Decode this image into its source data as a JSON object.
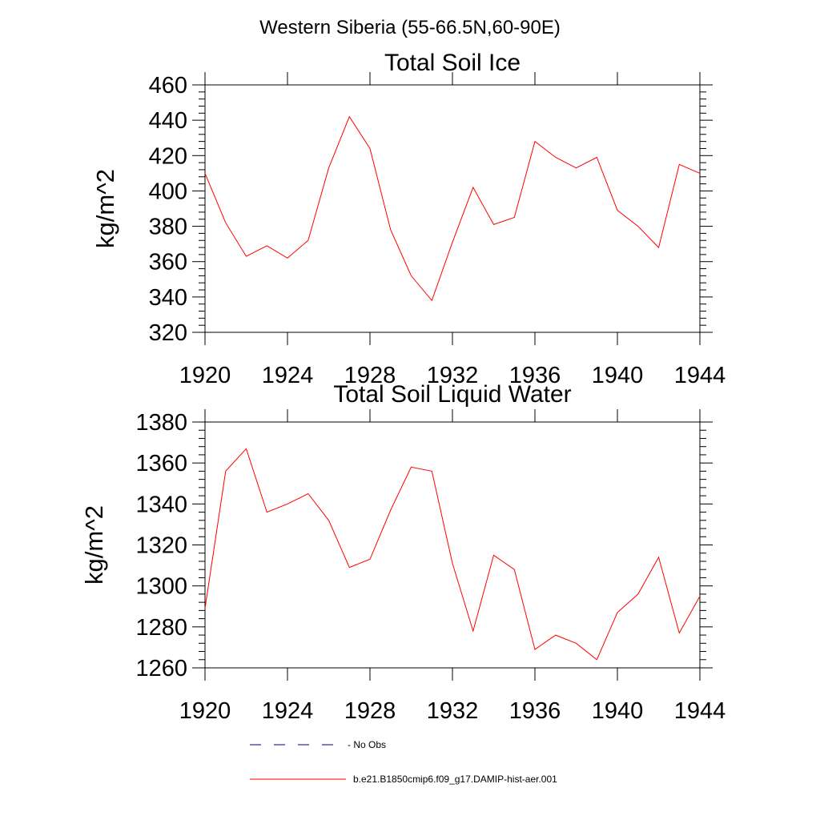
{
  "figure": {
    "suptitle": "Western Siberia (55-66.5N,60-90E)"
  },
  "legend": {
    "items": [
      {
        "label": "No Obs",
        "color": "#000080",
        "style": "dashed"
      },
      {
        "label": "b.e21.B1850cmip6.f09_g17.DAMIP-hist-aer.001",
        "color": "#ff0000",
        "style": "solid"
      }
    ]
  },
  "chart_data": [
    {
      "type": "line",
      "title": "Total Soil Ice",
      "xlabel": "",
      "ylabel": "kg/m^2",
      "xlim": [
        1920,
        1944
      ],
      "ylim": [
        320,
        460
      ],
      "xticks": [
        1920,
        1924,
        1928,
        1932,
        1936,
        1940,
        1944
      ],
      "yticks": [
        320,
        340,
        360,
        380,
        400,
        420,
        440,
        460
      ],
      "grid": false,
      "x": [
        1920,
        1921,
        1922,
        1923,
        1924,
        1925,
        1926,
        1927,
        1928,
        1929,
        1930,
        1931,
        1932,
        1933,
        1934,
        1935,
        1936,
        1937,
        1938,
        1939,
        1940,
        1941,
        1942,
        1943,
        1944
      ],
      "series": [
        {
          "color": "#ff0000",
          "values": [
            410,
            382,
            363,
            369,
            362,
            372,
            413,
            442,
            424,
            378,
            352,
            338,
            371,
            402,
            381,
            385,
            428,
            419,
            413,
            419,
            389,
            380,
            368,
            415,
            410
          ]
        }
      ]
    },
    {
      "type": "line",
      "title": "Total Soil Liquid Water",
      "xlabel": "",
      "ylabel": "kg/m^2",
      "xlim": [
        1920,
        1944
      ],
      "ylim": [
        1260,
        1380
      ],
      "xticks": [
        1920,
        1924,
        1928,
        1932,
        1936,
        1940,
        1944
      ],
      "yticks": [
        1260,
        1280,
        1300,
        1320,
        1340,
        1360,
        1380
      ],
      "grid": false,
      "x": [
        1920,
        1921,
        1922,
        1923,
        1924,
        1925,
        1926,
        1927,
        1928,
        1929,
        1930,
        1931,
        1932,
        1933,
        1934,
        1935,
        1936,
        1937,
        1938,
        1939,
        1940,
        1941,
        1942,
        1943,
        1944
      ],
      "series": [
        {
          "color": "#ff0000",
          "values": [
            1289,
            1356,
            1367,
            1336,
            1340,
            1345,
            1332,
            1309,
            1313,
            1337,
            1358,
            1356,
            1311,
            1278,
            1315,
            1308,
            1269,
            1276,
            1272,
            1264,
            1287,
            1296,
            1314,
            1277,
            1295
          ]
        }
      ]
    }
  ]
}
